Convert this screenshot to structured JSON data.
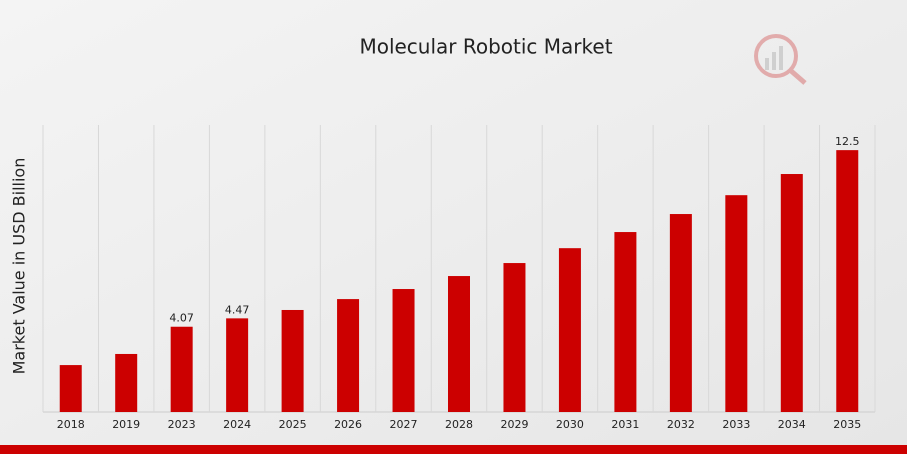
{
  "chart_data": {
    "type": "bar",
    "title": "Molecular Robotic Market",
    "y_label": "Market Value in USD Billion",
    "categories": [
      "2018",
      "2019",
      "2023",
      "2024",
      "2025",
      "2026",
      "2027",
      "2028",
      "2029",
      "2030",
      "2031",
      "2032",
      "2033",
      "2034",
      "2035"
    ],
    "values": [
      2.24,
      2.77,
      4.07,
      4.47,
      4.87,
      5.39,
      5.87,
      6.49,
      7.11,
      7.82,
      8.59,
      9.45,
      10.35,
      11.36,
      12.5
    ],
    "value_labels": [
      null,
      null,
      "4.07",
      "4.47",
      null,
      null,
      null,
      null,
      null,
      null,
      null,
      null,
      null,
      null,
      "12.5"
    ],
    "color": "#cc0000",
    "ylim": [
      0,
      13.7
    ],
    "grid": true
  }
}
